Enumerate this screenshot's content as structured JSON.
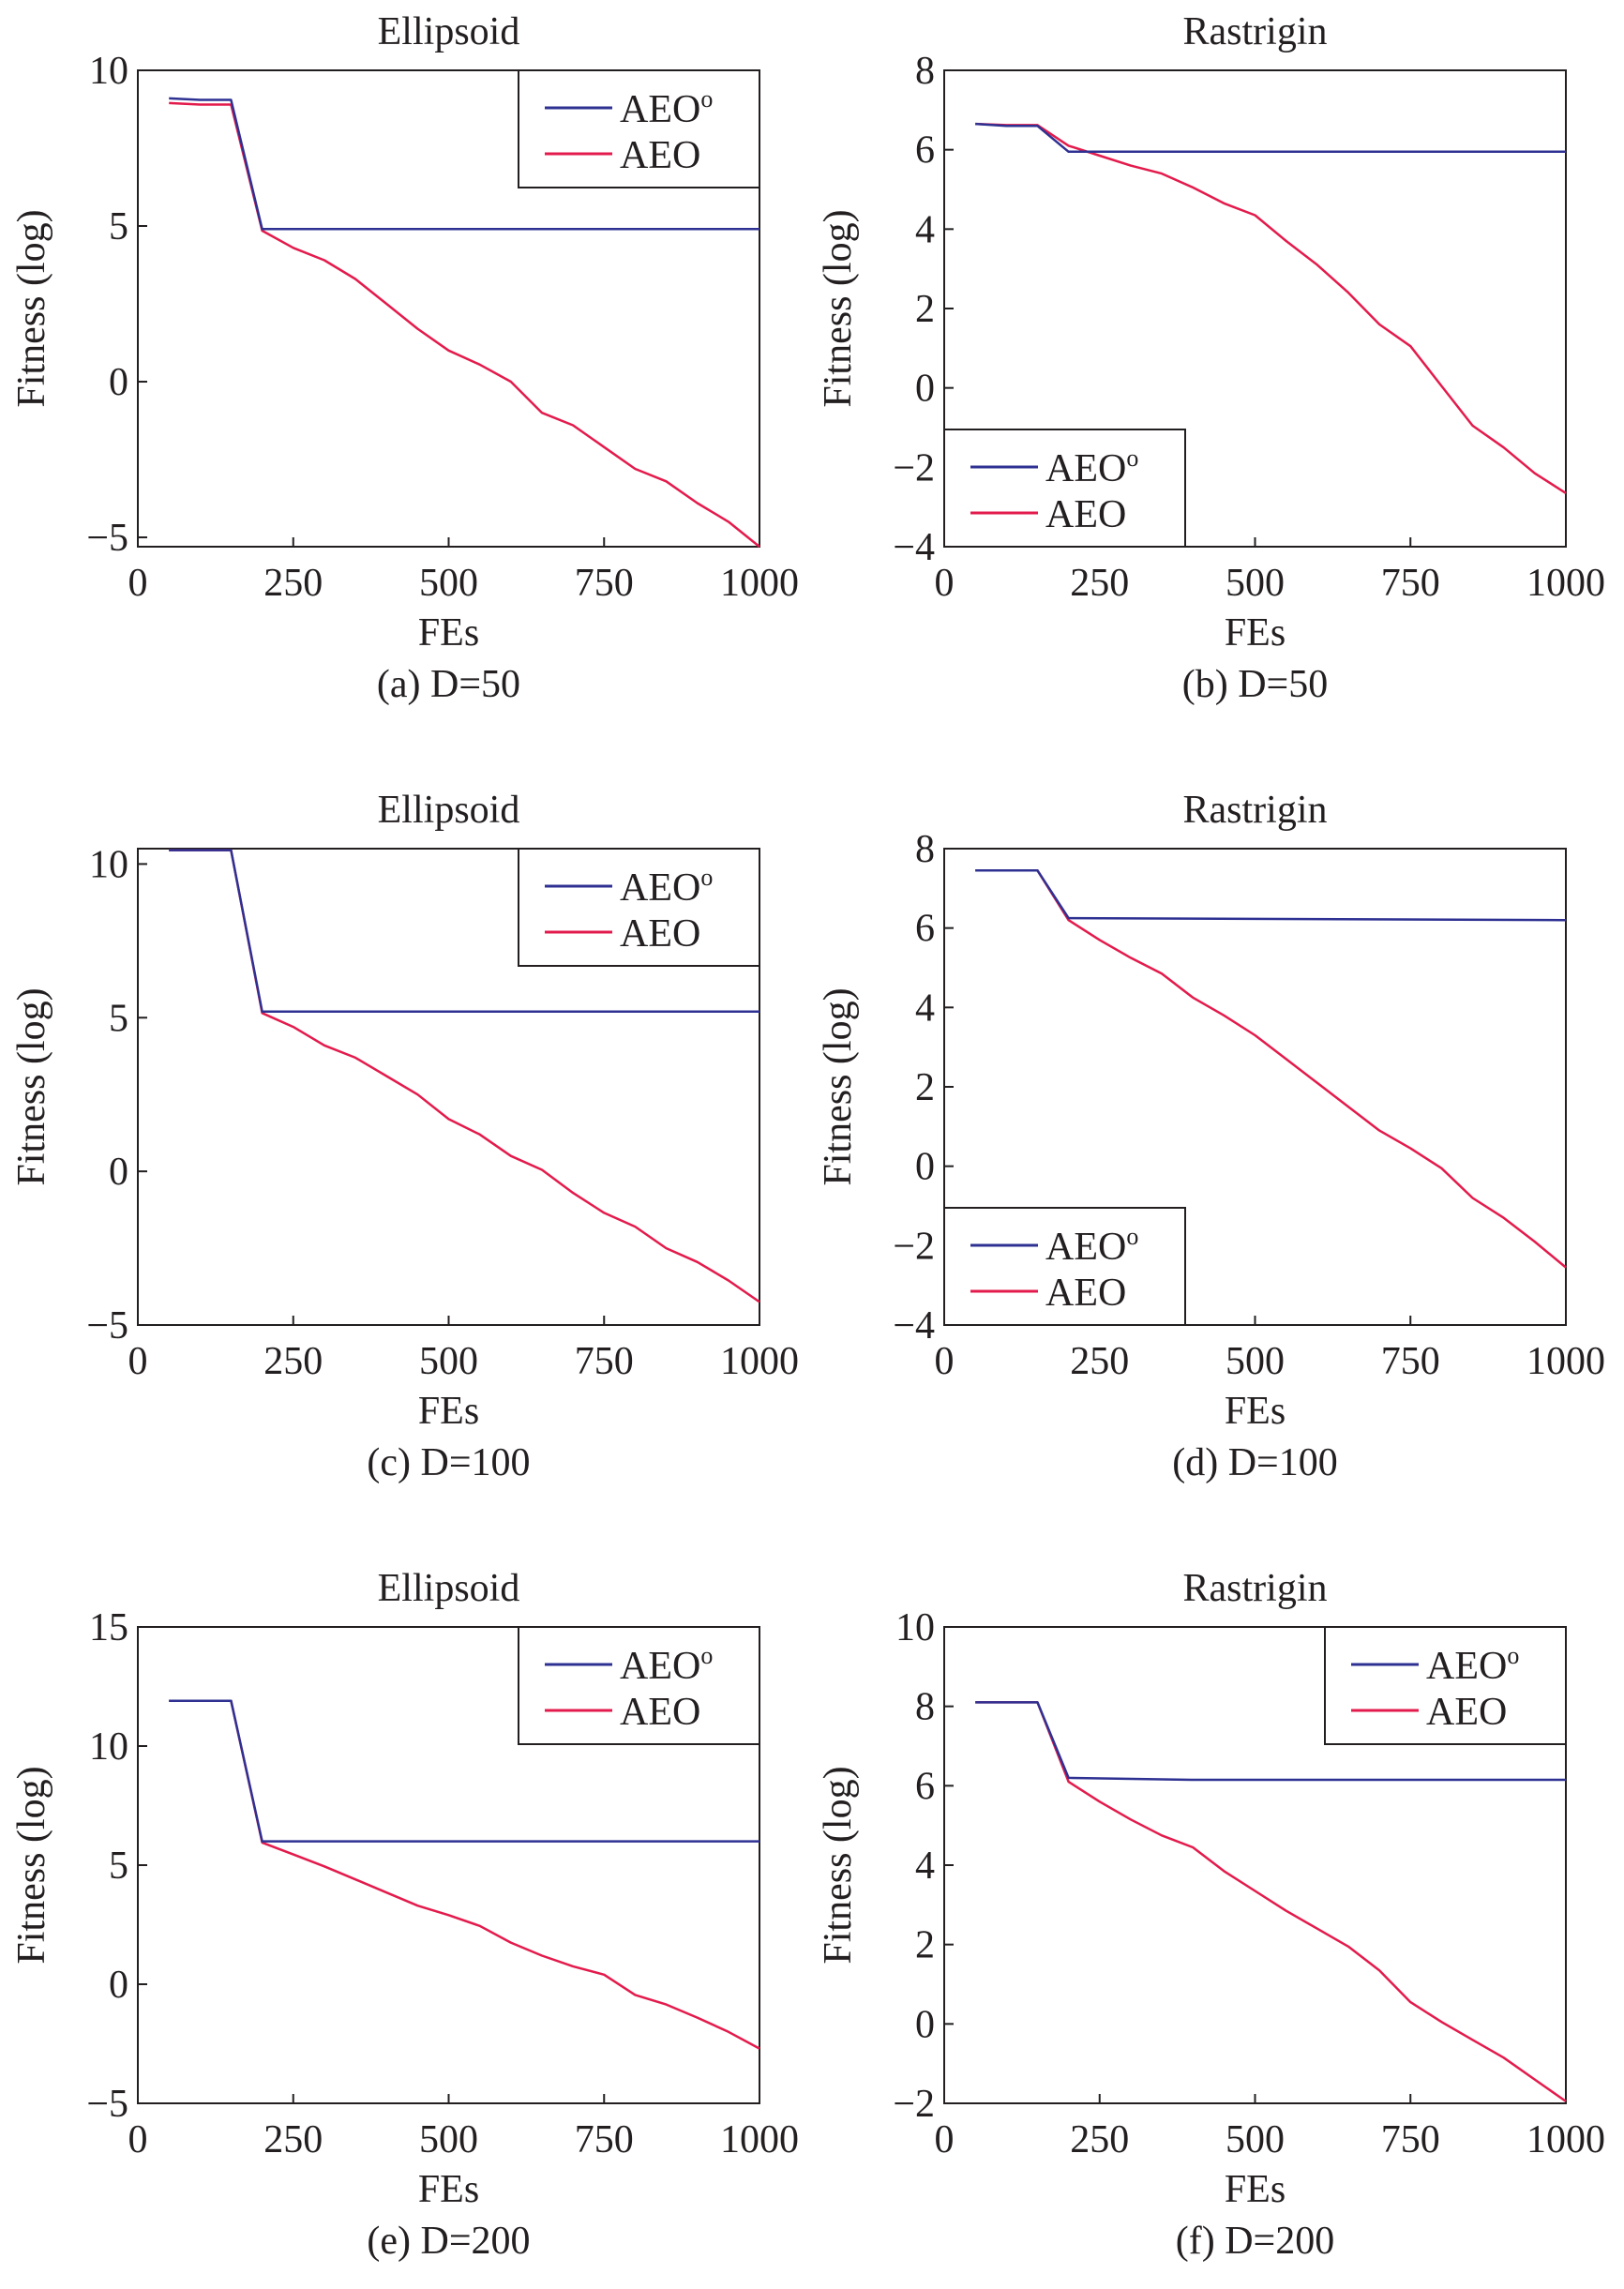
{
  "colors": {
    "AEOo": "#2e3192",
    "AEO": "#e31b4c",
    "axis": "#231f20",
    "background": "#ffffff"
  },
  "chart_data": [
    {
      "id": "a",
      "type": "line",
      "title": "Ellipsoid",
      "caption": "(a) D=50",
      "xlabel": "FEs",
      "ylabel": "Fitness (log)",
      "xlim": [
        0,
        1000
      ],
      "ylim": [
        -5.3,
        10
      ],
      "xticks": [
        0,
        250,
        500,
        750,
        1000
      ],
      "yticks": [
        -5,
        0,
        5,
        10
      ],
      "xtick_labels": [
        "0",
        "250",
        "500",
        "750",
        "1000"
      ],
      "ytick_labels": [
        "−5",
        "0",
        "5",
        "10"
      ],
      "legend_position": "top-right",
      "grid": false,
      "series": [
        {
          "name": "AEO",
          "name_sup": "o",
          "color": "#2e3192",
          "x": [
            50,
            100,
            150,
            200,
            1000
          ],
          "y": [
            9.1,
            9.05,
            9.05,
            4.9,
            4.9
          ]
        },
        {
          "name": "AEO",
          "color": "#e31b4c",
          "x": [
            50,
            100,
            150,
            200,
            250,
            300,
            350,
            400,
            450,
            500,
            550,
            600,
            650,
            700,
            750,
            800,
            850,
            900,
            950,
            1000
          ],
          "y": [
            8.95,
            8.9,
            8.9,
            4.85,
            4.3,
            3.9,
            3.3,
            2.5,
            1.7,
            1.0,
            0.55,
            0.0,
            -1.0,
            -1.4,
            -2.1,
            -2.8,
            -3.2,
            -3.9,
            -4.5,
            -5.3
          ]
        }
      ]
    },
    {
      "id": "b",
      "type": "line",
      "title": "Rastrigin",
      "caption": "(b) D=50",
      "xlabel": "FEs",
      "ylabel": "Fitness (log)",
      "xlim": [
        0,
        1000
      ],
      "ylim": [
        -4,
        8
      ],
      "xticks": [
        0,
        250,
        500,
        750,
        1000
      ],
      "yticks": [
        -4,
        -2,
        0,
        2,
        4,
        6,
        8
      ],
      "xtick_labels": [
        "0",
        "250",
        "500",
        "750",
        "1000"
      ],
      "ytick_labels": [
        "−4",
        "−2",
        "0",
        "2",
        "4",
        "6",
        "8"
      ],
      "legend_position": "bottom-left",
      "grid": false,
      "series": [
        {
          "name": "AEO",
          "name_sup": "o",
          "color": "#2e3192",
          "x": [
            50,
            100,
            150,
            200,
            1000
          ],
          "y": [
            6.65,
            6.6,
            6.6,
            5.95,
            5.95
          ]
        },
        {
          "name": "AEO",
          "color": "#e31b4c",
          "x": [
            50,
            100,
            150,
            200,
            250,
            300,
            350,
            400,
            450,
            500,
            550,
            600,
            650,
            700,
            750,
            800,
            850,
            900,
            950,
            1000
          ],
          "y": [
            6.65,
            6.62,
            6.62,
            6.1,
            5.85,
            5.6,
            5.4,
            5.05,
            4.65,
            4.35,
            3.7,
            3.1,
            2.4,
            1.6,
            1.05,
            0.05,
            -0.95,
            -1.5,
            -2.15,
            -2.65
          ]
        }
      ]
    },
    {
      "id": "c",
      "type": "line",
      "title": "Ellipsoid",
      "caption": "(c) D=100",
      "xlabel": "FEs",
      "ylabel": "Fitness (log)",
      "xlim": [
        0,
        1000
      ],
      "ylim": [
        -5,
        10.5
      ],
      "xticks": [
        0,
        250,
        500,
        750,
        1000
      ],
      "yticks": [
        -5,
        0,
        5,
        10
      ],
      "xtick_labels": [
        "0",
        "250",
        "500",
        "750",
        "1000"
      ],
      "ytick_labels": [
        "−5",
        "0",
        "5",
        "10"
      ],
      "legend_position": "top-right",
      "grid": false,
      "series": [
        {
          "name": "AEO",
          "name_sup": "o",
          "color": "#2e3192",
          "x": [
            50,
            100,
            150,
            200,
            1000
          ],
          "y": [
            10.45,
            10.45,
            10.45,
            5.2,
            5.2
          ]
        },
        {
          "name": "AEO",
          "color": "#e31b4c",
          "x": [
            50,
            100,
            150,
            200,
            250,
            300,
            350,
            400,
            450,
            500,
            550,
            600,
            650,
            700,
            750,
            800,
            850,
            900,
            950,
            1000
          ],
          "y": [
            10.45,
            10.45,
            10.45,
            5.15,
            4.7,
            4.1,
            3.7,
            3.1,
            2.5,
            1.7,
            1.2,
            0.5,
            0.05,
            -0.7,
            -1.35,
            -1.8,
            -2.5,
            -2.95,
            -3.55,
            -4.25
          ]
        }
      ]
    },
    {
      "id": "d",
      "type": "line",
      "title": "Rastrigin",
      "caption": "(d) D=100",
      "xlabel": "FEs",
      "ylabel": "Fitness (log)",
      "xlim": [
        0,
        1000
      ],
      "ylim": [
        -4,
        8
      ],
      "xticks": [
        0,
        250,
        500,
        750,
        1000
      ],
      "yticks": [
        -4,
        -2,
        0,
        2,
        4,
        6,
        8
      ],
      "xtick_labels": [
        "0",
        "250",
        "500",
        "750",
        "1000"
      ],
      "ytick_labels": [
        "−4",
        "−2",
        "0",
        "2",
        "4",
        "6",
        "8"
      ],
      "legend_position": "bottom-left",
      "grid": false,
      "series": [
        {
          "name": "AEO",
          "name_sup": "o",
          "color": "#2e3192",
          "x": [
            50,
            100,
            150,
            200,
            1000
          ],
          "y": [
            7.45,
            7.45,
            7.45,
            6.25,
            6.2
          ]
        },
        {
          "name": "AEO",
          "color": "#e31b4c",
          "x": [
            50,
            100,
            150,
            200,
            250,
            300,
            350,
            400,
            450,
            500,
            550,
            600,
            650,
            700,
            750,
            800,
            850,
            900,
            950,
            1000
          ],
          "y": [
            7.45,
            7.45,
            7.45,
            6.2,
            5.7,
            5.25,
            4.85,
            4.25,
            3.8,
            3.3,
            2.7,
            2.1,
            1.5,
            0.9,
            0.45,
            -0.05,
            -0.8,
            -1.3,
            -1.9,
            -2.55
          ]
        }
      ]
    },
    {
      "id": "e",
      "type": "line",
      "title": "Ellipsoid",
      "caption": "(e) D=200",
      "xlabel": "FEs",
      "ylabel": "Fitness (log)",
      "xlim": [
        0,
        1000
      ],
      "ylim": [
        -5,
        15
      ],
      "xticks": [
        0,
        250,
        500,
        750,
        1000
      ],
      "yticks": [
        -5,
        0,
        5,
        10,
        15
      ],
      "xtick_labels": [
        "0",
        "250",
        "500",
        "750",
        "1000"
      ],
      "ytick_labels": [
        "−5",
        "0",
        "5",
        "10",
        "15"
      ],
      "legend_position": "top-right",
      "grid": false,
      "series": [
        {
          "name": "AEO",
          "name_sup": "o",
          "color": "#2e3192",
          "x": [
            50,
            100,
            150,
            200,
            1000
          ],
          "y": [
            11.9,
            11.9,
            11.9,
            6.0,
            6.0
          ]
        },
        {
          "name": "AEO",
          "color": "#e31b4c",
          "x": [
            50,
            100,
            150,
            200,
            250,
            300,
            350,
            400,
            450,
            500,
            550,
            600,
            650,
            700,
            750,
            800,
            850,
            900,
            950,
            1000
          ],
          "y": [
            11.9,
            11.9,
            11.9,
            5.95,
            5.45,
            4.95,
            4.4,
            3.85,
            3.3,
            2.9,
            2.45,
            1.75,
            1.2,
            0.75,
            0.4,
            -0.45,
            -0.85,
            -1.4,
            -2.0,
            -2.7
          ]
        }
      ]
    },
    {
      "id": "f",
      "type": "line",
      "title": "Rastrigin",
      "caption": "(f) D=200",
      "xlabel": "FEs",
      "ylabel": "Fitness (log)",
      "xlim": [
        0,
        1000
      ],
      "ylim": [
        -2,
        10
      ],
      "xticks": [
        0,
        250,
        500,
        750,
        1000
      ],
      "yticks": [
        -2,
        0,
        2,
        4,
        6,
        8,
        10
      ],
      "xtick_labels": [
        "0",
        "250",
        "500",
        "750",
        "1000"
      ],
      "ytick_labels": [
        "−2",
        "0",
        "2",
        "4",
        "6",
        "8",
        "10"
      ],
      "legend_position": "top-right",
      "grid": false,
      "series": [
        {
          "name": "AEO",
          "name_sup": "o",
          "color": "#2e3192",
          "x": [
            50,
            100,
            150,
            200,
            400,
            1000
          ],
          "y": [
            8.1,
            8.1,
            8.1,
            6.2,
            6.15,
            6.15
          ]
        },
        {
          "name": "AEO",
          "color": "#e31b4c",
          "x": [
            50,
            100,
            150,
            200,
            250,
            300,
            350,
            400,
            450,
            500,
            550,
            600,
            650,
            700,
            750,
            800,
            850,
            900,
            950,
            1000
          ],
          "y": [
            8.1,
            8.1,
            8.1,
            6.1,
            5.6,
            5.15,
            4.75,
            4.45,
            3.85,
            3.35,
            2.85,
            2.4,
            1.95,
            1.35,
            0.55,
            0.05,
            -0.4,
            -0.85,
            -1.4,
            -1.95
          ]
        }
      ]
    }
  ]
}
